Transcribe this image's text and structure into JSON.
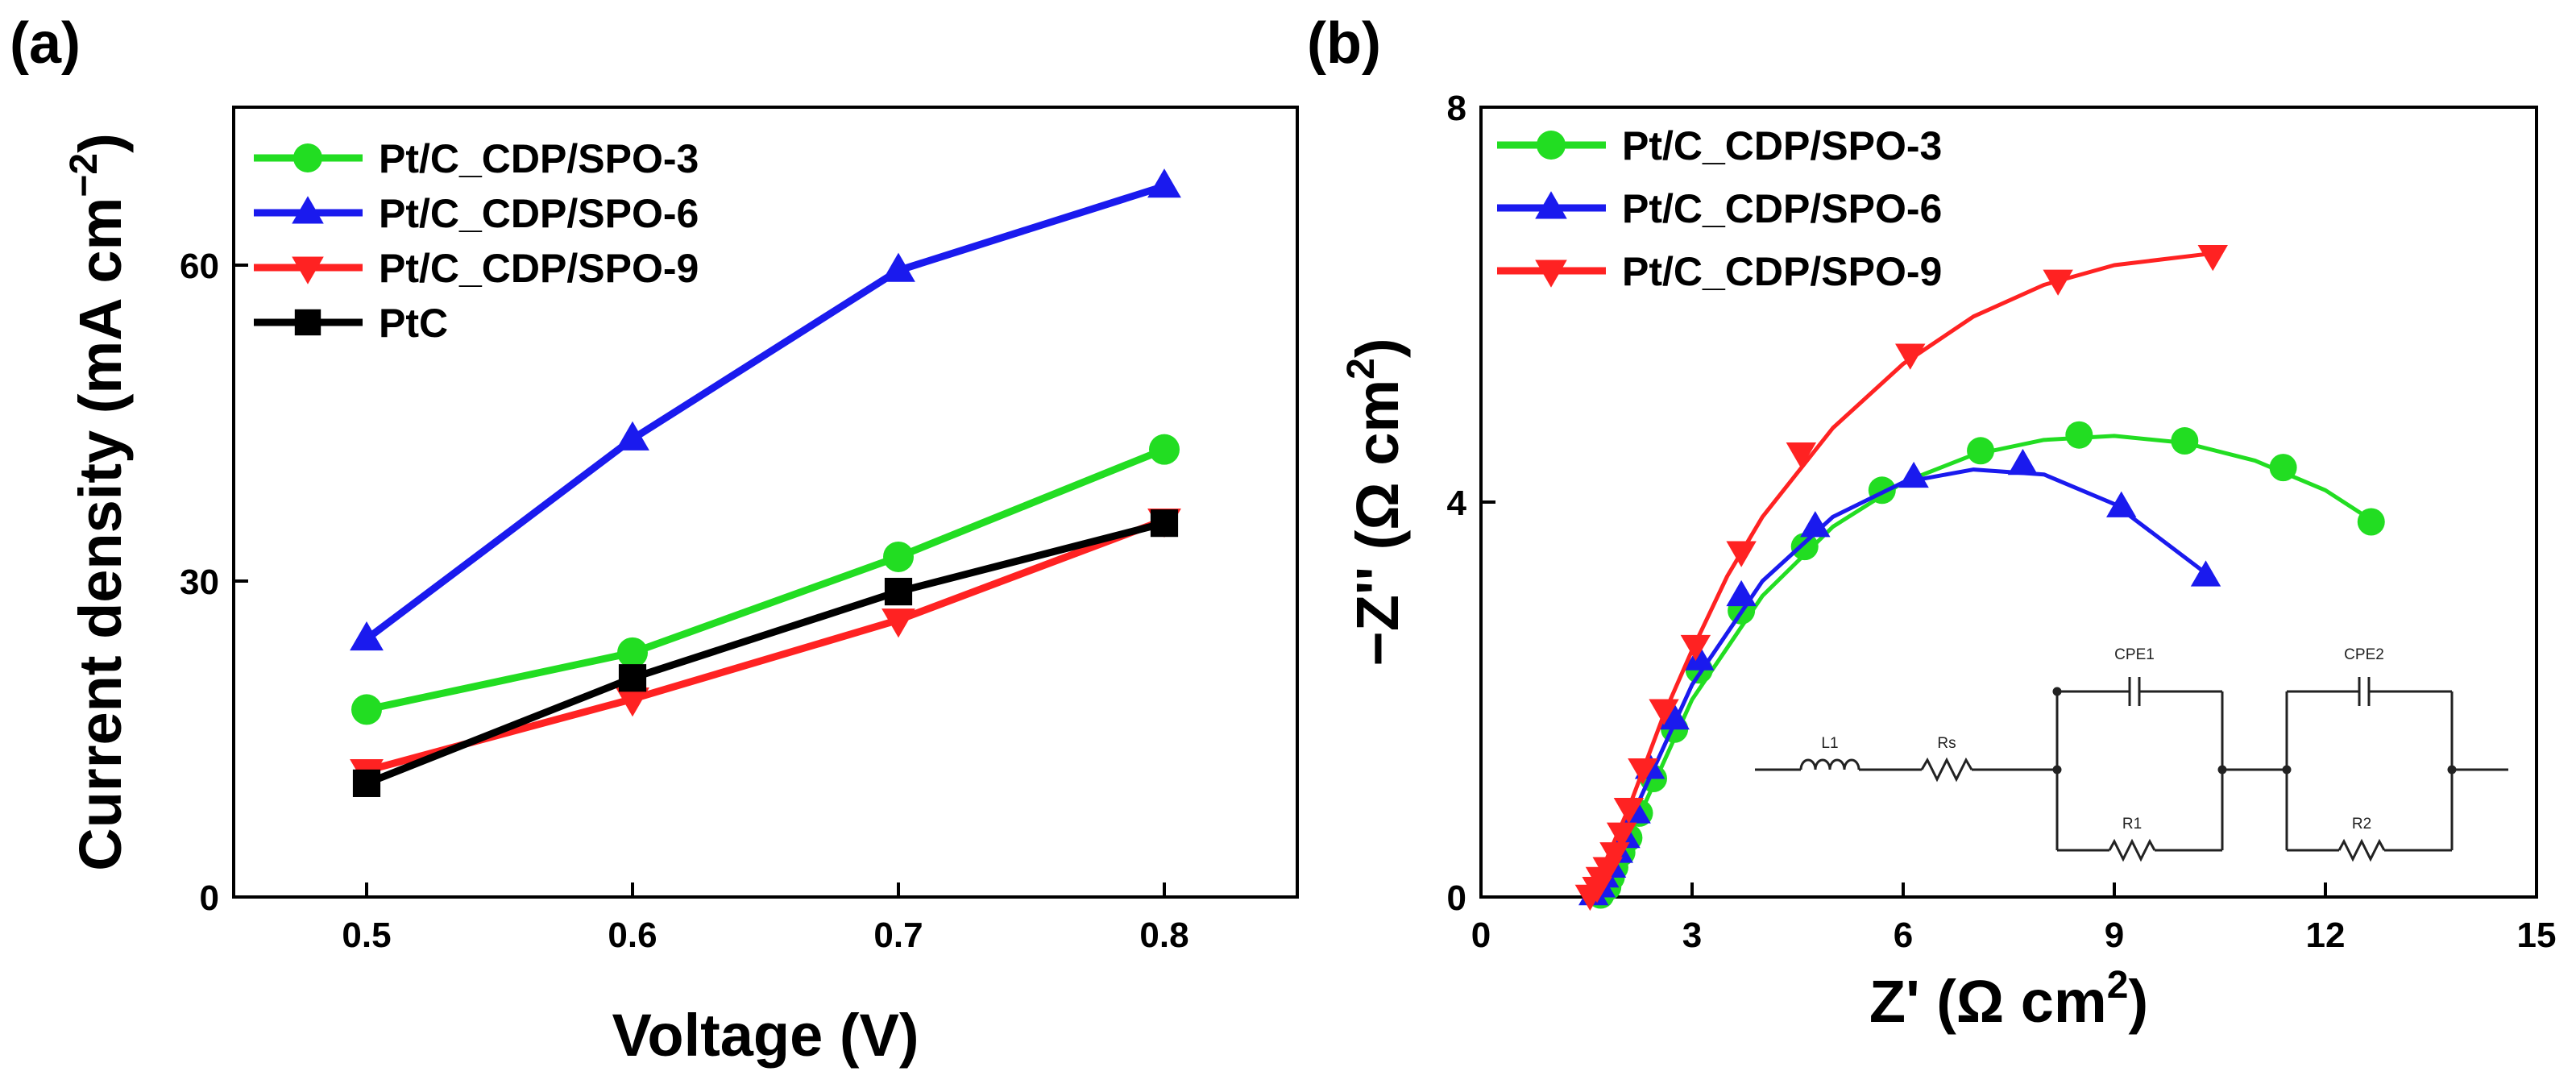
{
  "chart_data": [
    {
      "panel": "(a)",
      "type": "line",
      "xlabel": "Voltage (V)",
      "ylabel_main": "Current density (mA cm",
      "ylabel_sup": "−2",
      "ylabel_close": ")",
      "xlim": [
        0.45,
        0.85
      ],
      "ylim": [
        0,
        75
      ],
      "xticks": [
        0.5,
        0.6,
        0.7,
        0.8
      ],
      "xtick_labels": [
        "0.5",
        "0.6",
        "0.7",
        "0.8"
      ],
      "yticks": [
        0,
        30,
        60
      ],
      "ytick_labels": [
        "0",
        "30",
        "60"
      ],
      "x": [
        0.5,
        0.6,
        0.7,
        0.8
      ],
      "legend_position": "top-left",
      "series": [
        {
          "name": "Pt/C_CDP/SPO-3",
          "color": "#22dd22",
          "marker": "circle",
          "values": [
            17.8,
            23.2,
            32.3,
            42.5
          ]
        },
        {
          "name": "Pt/C_CDP/SPO-6",
          "color": "#1a1aee",
          "marker": "triangle-up",
          "values": [
            24.5,
            43.5,
            59.5,
            67.5
          ]
        },
        {
          "name": "Pt/C_CDP/SPO-9",
          "color": "#ff2222",
          "marker": "triangle-down",
          "values": [
            12.0,
            18.8,
            26.3,
            35.8
          ]
        },
        {
          "name": "PtC",
          "color": "#000000",
          "marker": "square",
          "values": [
            10.8,
            20.8,
            29.0,
            35.5
          ]
        }
      ]
    },
    {
      "panel": "(b)",
      "type": "scatter",
      "xlabel_main": "Z' (Ω cm",
      "xlabel_sup": "2",
      "xlabel_close": ")",
      "ylabel_main": "−Z'' (Ω cm",
      "ylabel_sup": "2",
      "ylabel_close": ")",
      "xlim": [
        0,
        15
      ],
      "ylim": [
        0,
        8
      ],
      "xticks": [
        0,
        3,
        6,
        9,
        12,
        15
      ],
      "xtick_labels": [
        "0",
        "3",
        "6",
        "9",
        "12",
        "15"
      ],
      "yticks": [
        0,
        4,
        8
      ],
      "ytick_labels": [
        "0",
        "4",
        "8"
      ],
      "legend_position": "top-left",
      "series": [
        {
          "name": "Pt/C_CDP/SPO-3",
          "color": "#22dd22",
          "marker": "circle",
          "points": [
            [
              1.7,
              0.02
            ],
            [
              1.8,
              0.1
            ],
            [
              1.85,
              0.2
            ],
            [
              1.9,
              0.3
            ],
            [
              2.0,
              0.45
            ],
            [
              2.1,
              0.6
            ],
            [
              2.25,
              0.85
            ],
            [
              2.45,
              1.2
            ],
            [
              2.75,
              1.7
            ],
            [
              3.1,
              2.3
            ],
            [
              3.7,
              2.9
            ],
            [
              4.6,
              3.55
            ],
            [
              5.7,
              4.12
            ],
            [
              7.1,
              4.52
            ],
            [
              8.5,
              4.68
            ],
            [
              10.0,
              4.62
            ],
            [
              11.4,
              4.35
            ],
            [
              12.65,
              3.8
            ]
          ],
          "fit": [
            [
              1.7,
              0.0
            ],
            [
              2.3,
              0.9
            ],
            [
              3.0,
              2.0
            ],
            [
              4.0,
              3.05
            ],
            [
              5.0,
              3.75
            ],
            [
              6.0,
              4.2
            ],
            [
              7.0,
              4.48
            ],
            [
              8.0,
              4.63
            ],
            [
              9.0,
              4.67
            ],
            [
              10.0,
              4.6
            ],
            [
              11.0,
              4.42
            ],
            [
              12.0,
              4.12
            ],
            [
              12.65,
              3.82
            ]
          ]
        },
        {
          "name": "Pt/C_CDP/SPO-6",
          "color": "#1a1aee",
          "marker": "triangle-up",
          "points": [
            [
              1.6,
              0.02
            ],
            [
              1.7,
              0.1
            ],
            [
              1.75,
              0.2
            ],
            [
              1.85,
              0.3
            ],
            [
              1.95,
              0.45
            ],
            [
              2.05,
              0.6
            ],
            [
              2.2,
              0.85
            ],
            [
              2.4,
              1.3
            ],
            [
              2.75,
              1.8
            ],
            [
              3.1,
              2.4
            ],
            [
              3.7,
              3.05
            ],
            [
              4.75,
              3.75
            ],
            [
              6.15,
              4.25
            ],
            [
              7.7,
              4.38
            ],
            [
              9.1,
              3.95
            ],
            [
              10.3,
              3.25
            ]
          ],
          "fit": [
            [
              1.6,
              0.0
            ],
            [
              2.2,
              0.9
            ],
            [
              3.0,
              2.15
            ],
            [
              4.0,
              3.2
            ],
            [
              5.0,
              3.85
            ],
            [
              6.0,
              4.2
            ],
            [
              7.0,
              4.33
            ],
            [
              8.0,
              4.28
            ],
            [
              9.0,
              3.98
            ],
            [
              10.3,
              3.28
            ]
          ]
        },
        {
          "name": "Pt/C_CDP/SPO-9",
          "color": "#ff2222",
          "marker": "triangle-down",
          "points": [
            [
              1.55,
              0.02
            ],
            [
              1.65,
              0.1
            ],
            [
              1.7,
              0.2
            ],
            [
              1.8,
              0.3
            ],
            [
              1.9,
              0.45
            ],
            [
              2.0,
              0.65
            ],
            [
              2.1,
              0.9
            ],
            [
              2.3,
              1.3
            ],
            [
              2.6,
              1.9
            ],
            [
              3.05,
              2.55
            ],
            [
              3.7,
              3.5
            ],
            [
              4.55,
              4.5
            ],
            [
              6.1,
              5.5
            ],
            [
              8.2,
              6.25
            ],
            [
              10.4,
              6.5
            ]
          ],
          "fit": [
            [
              1.55,
              0.0
            ],
            [
              2.1,
              0.9
            ],
            [
              2.6,
              1.85
            ],
            [
              3.0,
              2.5
            ],
            [
              3.5,
              3.25
            ],
            [
              4.0,
              3.85
            ],
            [
              5.0,
              4.75
            ],
            [
              6.0,
              5.4
            ],
            [
              7.0,
              5.88
            ],
            [
              8.0,
              6.2
            ],
            [
              9.0,
              6.4
            ],
            [
              10.4,
              6.52
            ]
          ]
        }
      ],
      "inset_circuit": {
        "elements": [
          "L1",
          "Rs",
          "CPE1",
          "R1",
          "CPE2",
          "R2"
        ]
      }
    }
  ]
}
